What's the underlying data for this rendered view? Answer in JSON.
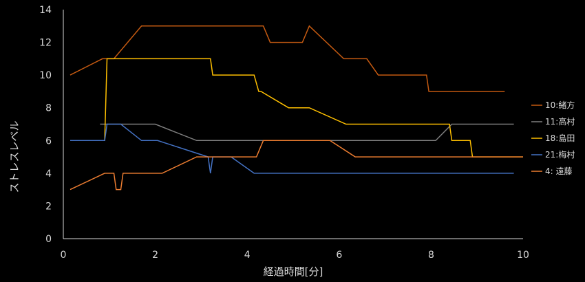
{
  "chart_data": {
    "type": "line",
    "xlabel": "経過時間[分]",
    "ylabel": "ストレスレベル",
    "xlim": [
      0,
      10
    ],
    "ylim": [
      0,
      14
    ],
    "x_ticks": [
      "0",
      "2",
      "4",
      "6",
      "8",
      "10"
    ],
    "y_ticks": [
      "0",
      "2",
      "4",
      "6",
      "8",
      "10",
      "12",
      "14"
    ],
    "grid": false,
    "legend_position": "right",
    "background": "#000000",
    "series": [
      {
        "name": "10:緒方",
        "color": "#c55a11",
        "points": [
          [
            0.15,
            10
          ],
          [
            0.85,
            11
          ],
          [
            1.1,
            11
          ],
          [
            1.7,
            13
          ],
          [
            4.35,
            13
          ],
          [
            4.5,
            12
          ],
          [
            5.2,
            12
          ],
          [
            5.35,
            13
          ],
          [
            6.1,
            11
          ],
          [
            6.6,
            11
          ],
          [
            6.85,
            10
          ],
          [
            7.9,
            10
          ],
          [
            7.95,
            9
          ],
          [
            9.6,
            9
          ]
        ]
      },
      {
        "name": "11:高村",
        "color": "#7f7f7f",
        "points": [
          [
            0.8,
            7
          ],
          [
            2.0,
            7
          ],
          [
            2.9,
            6
          ],
          [
            8.1,
            6
          ],
          [
            8.45,
            7
          ],
          [
            9.8,
            7
          ]
        ]
      },
      {
        "name": "18:島田",
        "color": "#ffc000",
        "points": [
          [
            0.8,
            6
          ],
          [
            0.9,
            6
          ],
          [
            0.95,
            11
          ],
          [
            3.2,
            11
          ],
          [
            3.25,
            10
          ],
          [
            4.15,
            10
          ],
          [
            4.25,
            9
          ],
          [
            4.3,
            9
          ],
          [
            4.9,
            8
          ],
          [
            5.35,
            8
          ],
          [
            6.15,
            7
          ],
          [
            8.4,
            7
          ],
          [
            8.45,
            6
          ],
          [
            8.85,
            6
          ],
          [
            8.9,
            5
          ],
          [
            10.0,
            5
          ]
        ]
      },
      {
        "name": "21:梅村",
        "color": "#4472c4",
        "points": [
          [
            0.15,
            6
          ],
          [
            0.9,
            6
          ],
          [
            0.95,
            7
          ],
          [
            1.25,
            7
          ],
          [
            1.7,
            6
          ],
          [
            2.05,
            6
          ],
          [
            3.15,
            5
          ],
          [
            3.2,
            4
          ],
          [
            3.25,
            5
          ],
          [
            3.65,
            5
          ],
          [
            4.15,
            4
          ],
          [
            9.8,
            4
          ]
        ]
      },
      {
        "name": "4: 遠藤",
        "color": "#ed7d31",
        "points": [
          [
            0.15,
            3
          ],
          [
            0.9,
            4
          ],
          [
            1.1,
            4
          ],
          [
            1.15,
            3
          ],
          [
            1.25,
            3
          ],
          [
            1.3,
            4
          ],
          [
            2.15,
            4
          ],
          [
            2.9,
            5
          ],
          [
            4.2,
            5
          ],
          [
            4.35,
            6
          ],
          [
            5.8,
            6
          ],
          [
            6.35,
            5
          ],
          [
            10.0,
            5
          ]
        ]
      }
    ]
  }
}
